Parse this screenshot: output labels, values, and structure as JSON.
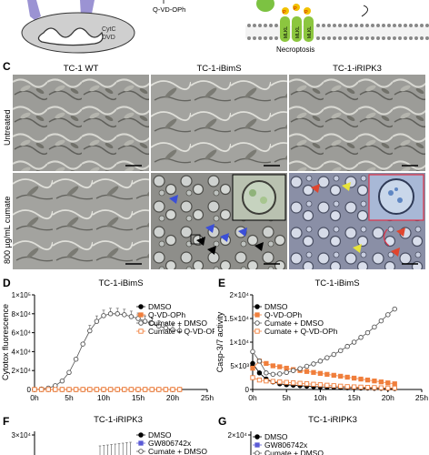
{
  "panel_a": {
    "inhibitor_label": "Q-VD-OPh",
    "organelle_labels": [
      "CytC",
      "DVD"
    ]
  },
  "panel_b": {
    "protein_labels": [
      "P",
      "P",
      "P",
      "MLKL",
      "MLKL",
      "MLKL"
    ],
    "caption": "Necroptosis"
  },
  "panel_c": {
    "letter": "C",
    "columns": [
      "TC-1 WT",
      "TC-1-iBimS",
      "TC-1-iRIPK3"
    ],
    "rows": [
      "Untreated",
      "800 µg/mL cumate"
    ]
  },
  "panel_d": {
    "letter": "D"
  },
  "panel_e": {
    "letter": "E"
  },
  "panel_f": {
    "letter": "F"
  },
  "panel_g": {
    "letter": "G"
  },
  "colors": {
    "dmso": "#000000",
    "qvd": "#f07f3c",
    "cumate": "#555555",
    "gsk": "#5b5bd6"
  },
  "chart_data": [
    {
      "type": "line",
      "title": "TC-1-iBimS",
      "ylabel": "Cytotox fluorescence",
      "xlabel": "",
      "x_ticks": [
        "0h",
        "5h",
        "10h",
        "15h",
        "20h",
        "25h"
      ],
      "y_ticks": [
        "0",
        "2×10⁴",
        "4×10⁴",
        "6×10⁴",
        "8×10⁴",
        "1×10⁵"
      ],
      "xlim": [
        0,
        25
      ],
      "ylim": [
        0,
        100000
      ],
      "legend": "top-right",
      "x": [
        0,
        1,
        2,
        3,
        4,
        5,
        6,
        7,
        8,
        9,
        10,
        11,
        12,
        13,
        14,
        15,
        16,
        17,
        18,
        19,
        20,
        21
      ],
      "series": [
        {
          "name": "DMSO",
          "marker": "filled-circle",
          "values": [
            0,
            0,
            0,
            0,
            0,
            0,
            0,
            0,
            0,
            0,
            0,
            0,
            0,
            0,
            0,
            0,
            0,
            0,
            0,
            0,
            0,
            0
          ]
        },
        {
          "name": "Q-VD-OPh",
          "marker": "filled-square",
          "values": [
            0,
            0,
            0,
            0,
            0,
            0,
            0,
            0,
            0,
            0,
            0,
            0,
            0,
            0,
            0,
            0,
            0,
            0,
            0,
            0,
            0,
            0
          ]
        },
        {
          "name": "Cumate + DMSO",
          "marker": "open-circle",
          "values": [
            0,
            500,
            1500,
            4000,
            9000,
            18000,
            32000,
            48000,
            62000,
            72000,
            78000,
            80000,
            80000,
            79000,
            77000,
            75000,
            72000,
            70000,
            67000,
            65000,
            63000,
            62000
          ]
        },
        {
          "name": "Cumate + Q-VD-OPh",
          "marker": "open-square",
          "values": [
            0,
            0,
            0,
            0,
            0,
            0,
            0,
            0,
            0,
            0,
            0,
            0,
            0,
            0,
            0,
            0,
            0,
            0,
            0,
            0,
            0,
            0
          ]
        }
      ]
    },
    {
      "type": "line",
      "title": "TC-1-iBimS",
      "ylabel": "Casp-3/7 activity",
      "xlabel": "",
      "x_ticks": [
        "0h",
        "5h",
        "10h",
        "15h",
        "20h",
        "25h"
      ],
      "y_ticks": [
        "0",
        "5×10³",
        "1×10⁴",
        "1.5×10⁴",
        "2×10⁴"
      ],
      "xlim": [
        0,
        25
      ],
      "ylim": [
        0,
        20000
      ],
      "legend": "top-left",
      "x": [
        0,
        1,
        2,
        3,
        4,
        5,
        6,
        7,
        8,
        9,
        10,
        11,
        12,
        13,
        14,
        15,
        16,
        17,
        18,
        19,
        20,
        21
      ],
      "series": [
        {
          "name": "DMSO",
          "marker": "filled-circle",
          "values": [
            5500,
            3500,
            2200,
            1600,
            1200,
            1000,
            900,
            800,
            700,
            600,
            550,
            500,
            450,
            400,
            350,
            350,
            300,
            300,
            250,
            250,
            200,
            200
          ]
        },
        {
          "name": "Q-VD-OPh",
          "marker": "filled-square",
          "values": [
            4500,
            6000,
            5500,
            5000,
            4800,
            4500,
            4200,
            4000,
            3800,
            3600,
            3400,
            3200,
            3000,
            2800,
            2600,
            2400,
            2200,
            2000,
            1800,
            1600,
            1400,
            1200
          ]
        },
        {
          "name": "Cumate + DMSO",
          "marker": "open-circle",
          "values": [
            8000,
            6000,
            3500,
            3200,
            3300,
            3600,
            4000,
            4400,
            4900,
            5400,
            6000,
            6700,
            7400,
            8200,
            9100,
            10000,
            11000,
            12000,
            13200,
            14500,
            15800,
            17000
          ]
        },
        {
          "name": "Cumate + Q-VD-OPh",
          "marker": "open-square",
          "values": [
            2500,
            2000,
            1800,
            1700,
            1600,
            1500,
            1400,
            1300,
            1200,
            1100,
            1000,
            900,
            800,
            700,
            600,
            550,
            500,
            450,
            400,
            350,
            300,
            300
          ]
        }
      ]
    },
    {
      "type": "line",
      "title": "TC-1-iRIPK3",
      "ylabel": "",
      "y_ticks": [
        "3×10⁴"
      ],
      "legend_entries": [
        "DMSO",
        "GW806742x",
        "Cumate + DMSO"
      ]
    },
    {
      "type": "line",
      "title": "TC-1-iRIPK3",
      "ylabel": "",
      "y_ticks": [
        "2×10⁴"
      ],
      "legend_entries": [
        "DMSO",
        "GW806742x",
        "Cumate + DMSO"
      ]
    }
  ]
}
